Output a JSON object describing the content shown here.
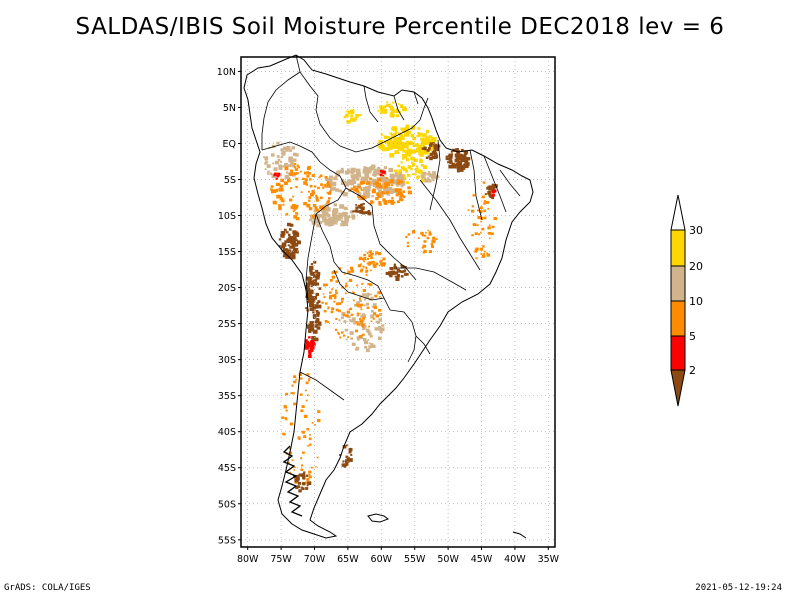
{
  "title": "SALDAS/IBIS Soil Moisture Percentile DEC2018 lev = 6",
  "footer": {
    "credit": "GrADS: COLA/IGES",
    "timestamp": "2021-05-12-19:24"
  },
  "axes": {
    "lat_labels": [
      "10N",
      "5N",
      "EQ",
      "5S",
      "10S",
      "15S",
      "20S",
      "25S",
      "30S",
      "35S",
      "40S",
      "45S",
      "50S",
      "55S"
    ],
    "lat_values": [
      10,
      5,
      0,
      -5,
      -10,
      -15,
      -20,
      -25,
      -30,
      -35,
      -40,
      -45,
      -50,
      -55
    ],
    "lon_labels": [
      "80W",
      "75W",
      "70W",
      "65W",
      "60W",
      "55W",
      "50W",
      "45W",
      "40W",
      "35W"
    ],
    "lon_values": [
      -80,
      -75,
      -70,
      -65,
      -60,
      -55,
      -50,
      -45,
      -40,
      -35
    ],
    "lon_range": [
      -81,
      -34
    ],
    "lat_range": [
      12,
      -56
    ]
  },
  "legend": {
    "labels": [
      "2",
      "5",
      "10",
      "20",
      "30"
    ],
    "colors": {
      "below_2": "#8c4a12",
      "2_5": "#ff0000",
      "5_10": "#ff8c00",
      "10_20": "#d2b48c",
      "20_30": "#ffd700",
      "above_30": "#ffffff"
    }
  },
  "colors": {
    "frame": "#000000",
    "grid": "#aaaaaa",
    "coast": "#000000"
  }
}
